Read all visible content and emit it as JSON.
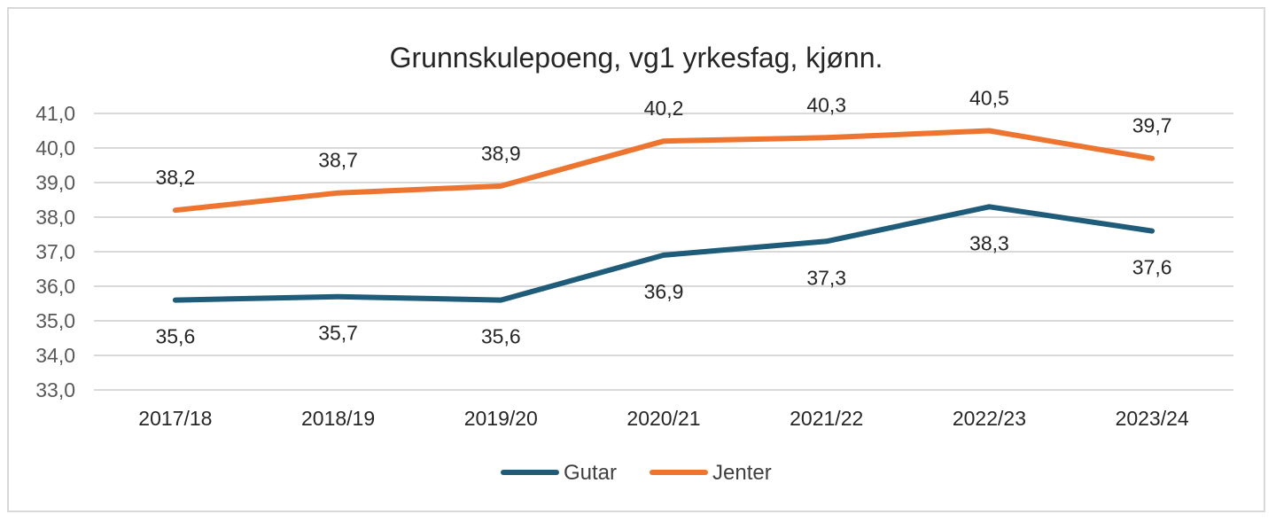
{
  "chart_data": {
    "type": "line",
    "title": "Grunnskulepoeng, vg1 yrkesfag, kjønn.",
    "categories": [
      "2017/18",
      "2018/19",
      "2019/20",
      "2020/21",
      "2021/22",
      "2022/23",
      "2023/24"
    ],
    "series": [
      {
        "name": "Gutar",
        "color": "#1f5c7a",
        "values": [
          35.6,
          35.7,
          35.6,
          36.9,
          37.3,
          38.3,
          37.6
        ],
        "labels": [
          "35,6",
          "35,7",
          "35,6",
          "36,9",
          "37,3",
          "38,3",
          "37,6"
        ],
        "label_position": "below"
      },
      {
        "name": "Jenter",
        "color": "#ed7530",
        "values": [
          38.2,
          38.7,
          38.9,
          40.2,
          40.3,
          40.5,
          39.7
        ],
        "labels": [
          "38,2",
          "38,7",
          "38,9",
          "40,2",
          "40,3",
          "40,5",
          "39,7"
        ],
        "label_position": "above"
      }
    ],
    "ylim": [
      33,
      41
    ],
    "yticks": [
      "33,0",
      "34,0",
      "35,0",
      "36,0",
      "37,0",
      "38,0",
      "39,0",
      "40,0",
      "41,0"
    ],
    "grid": true,
    "legend_position": "bottom"
  }
}
